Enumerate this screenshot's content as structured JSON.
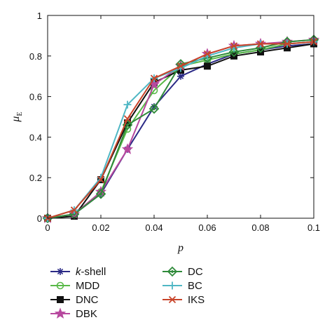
{
  "chart_data": {
    "type": "line",
    "title": "",
    "xlabel": "p",
    "ylabel": "μ",
    "ylabel_subscript": "E",
    "xlim": [
      0,
      0.1
    ],
    "ylim": [
      0,
      1
    ],
    "x_ticks": [
      0,
      0.02,
      0.04,
      0.06,
      0.08,
      0.1
    ],
    "x_tick_labels": [
      "0",
      "0.02",
      "0.04",
      "0.06",
      "0.08",
      "0.1"
    ],
    "y_ticks": [
      0,
      0.2,
      0.4,
      0.6,
      0.8,
      1
    ],
    "y_tick_labels": [
      "0",
      "0.2",
      "0.4",
      "0.6",
      "0.8",
      "1"
    ],
    "grid": false,
    "legend_position": "bottom",
    "x": [
      0,
      0.01,
      0.02,
      0.03,
      0.04,
      0.05,
      0.06,
      0.07,
      0.08,
      0.09,
      0.1
    ],
    "series": [
      {
        "name": "k-shell",
        "name_prefix": "k",
        "name_suffix": "-shell",
        "color": "#2b2a86",
        "marker": "asterisk",
        "values": [
          0.0,
          0.02,
          0.12,
          0.34,
          0.55,
          0.7,
          0.76,
          0.81,
          0.83,
          0.85,
          0.86
        ]
      },
      {
        "name": "MDD",
        "color": "#58b947",
        "marker": "circle",
        "values": [
          0.0,
          0.02,
          0.13,
          0.44,
          0.63,
          0.75,
          0.78,
          0.81,
          0.83,
          0.86,
          0.87
        ]
      },
      {
        "name": "DNC",
        "color": "#111111",
        "marker": "square",
        "values": [
          0.0,
          0.01,
          0.19,
          0.47,
          0.67,
          0.73,
          0.75,
          0.8,
          0.82,
          0.84,
          0.86
        ]
      },
      {
        "name": "DBK",
        "color": "#b7489e",
        "marker": "star",
        "values": [
          0.0,
          0.02,
          0.13,
          0.34,
          0.66,
          0.75,
          0.81,
          0.85,
          0.86,
          0.87,
          0.88
        ]
      },
      {
        "name": "DC",
        "color": "#2f8a3a",
        "marker": "diamond",
        "values": [
          0.0,
          0.02,
          0.12,
          0.46,
          0.54,
          0.76,
          0.79,
          0.82,
          0.84,
          0.87,
          0.88
        ]
      },
      {
        "name": "BC",
        "color": "#4fb7c4",
        "marker": "plus",
        "values": [
          0.0,
          0.04,
          0.2,
          0.56,
          0.69,
          0.74,
          0.8,
          0.84,
          0.86,
          0.86,
          0.87
        ]
      },
      {
        "name": "IKS",
        "color": "#c8442a",
        "marker": "x",
        "values": [
          0.0,
          0.04,
          0.19,
          0.49,
          0.69,
          0.75,
          0.81,
          0.85,
          0.86,
          0.86,
          0.87
        ]
      }
    ]
  }
}
